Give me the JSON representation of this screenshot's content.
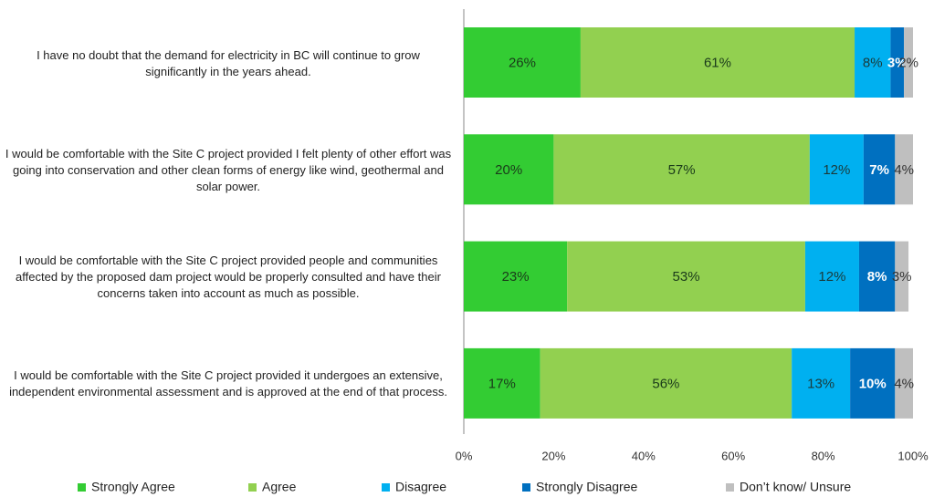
{
  "chart_data": {
    "type": "stacked-barh",
    "categories": [
      "I have no doubt that the demand for electricity in BC will continue to grow significantly in the years ahead.",
      "I would be comfortable with the Site C project provided I felt plenty of other effort was going into conservation and other clean forms of energy like wind, geothermal and solar power.",
      "I would be comfortable with the Site C project provided people and communities affected by the proposed dam project would be properly consulted and have their concerns taken into account as much as possible.",
      "I would be comfortable with the Site C project provided it undergoes an extensive, independent environmental assessment and is approved at the end of that process."
    ],
    "series": [
      {
        "name": "Strongly Agree",
        "color": "#33cc33",
        "values": [
          26,
          20,
          23,
          17
        ],
        "value_labels": [
          "26%",
          "20%",
          "23%",
          "17%"
        ]
      },
      {
        "name": "Agree",
        "color": "#92d050",
        "values": [
          61,
          57,
          53,
          56
        ],
        "value_labels": [
          "61%",
          "57%",
          "53%",
          "56%"
        ]
      },
      {
        "name": "Disagree",
        "color": "#00b0f0",
        "values": [
          8,
          12,
          12,
          13
        ],
        "value_labels": [
          "8%",
          "12%",
          "12%",
          "13%"
        ]
      },
      {
        "name": "Strongly Disagree",
        "color": "#0070c0",
        "values": [
          3,
          7,
          8,
          10
        ],
        "value_labels": [
          "3%",
          "7%",
          "8%",
          "10%"
        ]
      },
      {
        "name": "Don’t know/ Unsure",
        "color": "#bfbfbf",
        "values": [
          2,
          4,
          3,
          4
        ],
        "value_labels": [
          "2%",
          "4%",
          "3%",
          "4%"
        ]
      }
    ],
    "xlim": [
      0,
      100
    ],
    "xticks": [
      {
        "value": 0,
        "label": "0%"
      },
      {
        "value": 20,
        "label": "20%"
      },
      {
        "value": 40,
        "label": "40%"
      },
      {
        "value": 60,
        "label": "60%"
      },
      {
        "value": 80,
        "label": "80%"
      },
      {
        "value": 100,
        "label": "100%"
      }
    ],
    "legend": "bottom"
  }
}
